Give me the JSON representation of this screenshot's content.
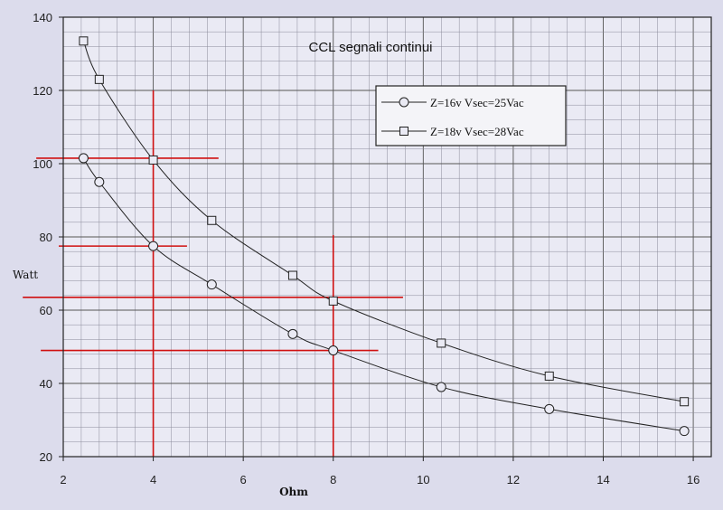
{
  "chart_data": {
    "type": "scatter",
    "title": "CCL  segnali  continui",
    "xlabel": "Ohm",
    "ylabel": "Watt",
    "xlim": [
      2,
      16.4
    ],
    "ylim": [
      20,
      140
    ],
    "x_ticks": [
      2,
      4,
      6,
      8,
      10,
      12,
      14,
      16
    ],
    "y_ticks": [
      20,
      40,
      60,
      80,
      100,
      120,
      140
    ],
    "grid": true,
    "legend_position": "top-right",
    "series": [
      {
        "name": "Z=16v  Vsec=25Vac",
        "marker": "circle",
        "color": "#222222",
        "x": [
          2.45,
          2.8,
          4.0,
          5.3,
          7.1,
          8.0,
          10.4,
          12.8,
          15.8
        ],
        "y": [
          101.5,
          95,
          77.5,
          67,
          53.5,
          49,
          39,
          33,
          27
        ]
      },
      {
        "name": "Z=18v  Vsec=28Vac",
        "marker": "square",
        "color": "#222222",
        "x": [
          2.45,
          2.8,
          4.0,
          5.3,
          7.1,
          8.0,
          10.4,
          12.8,
          15.8
        ],
        "y": [
          133.5,
          123,
          101,
          84.5,
          69.5,
          62.5,
          51,
          42,
          35
        ]
      }
    ],
    "annotations": {
      "color": "#d01010",
      "vertical_lines": [
        {
          "x": 4,
          "y_from": 20,
          "y_to": 120
        },
        {
          "x": 8,
          "y_from": 20,
          "y_to": 80.5
        }
      ],
      "horizontal_lines": [
        {
          "y": 101.5,
          "x_from": 1.4,
          "x_to": 5.45
        },
        {
          "y": 77.5,
          "x_from": 1.9,
          "x_to": 4.75
        },
        {
          "y": 63.5,
          "x_from": 1.1,
          "x_to": 9.55
        },
        {
          "y": 49,
          "x_from": 1.5,
          "x_to": 9.0
        }
      ]
    }
  }
}
